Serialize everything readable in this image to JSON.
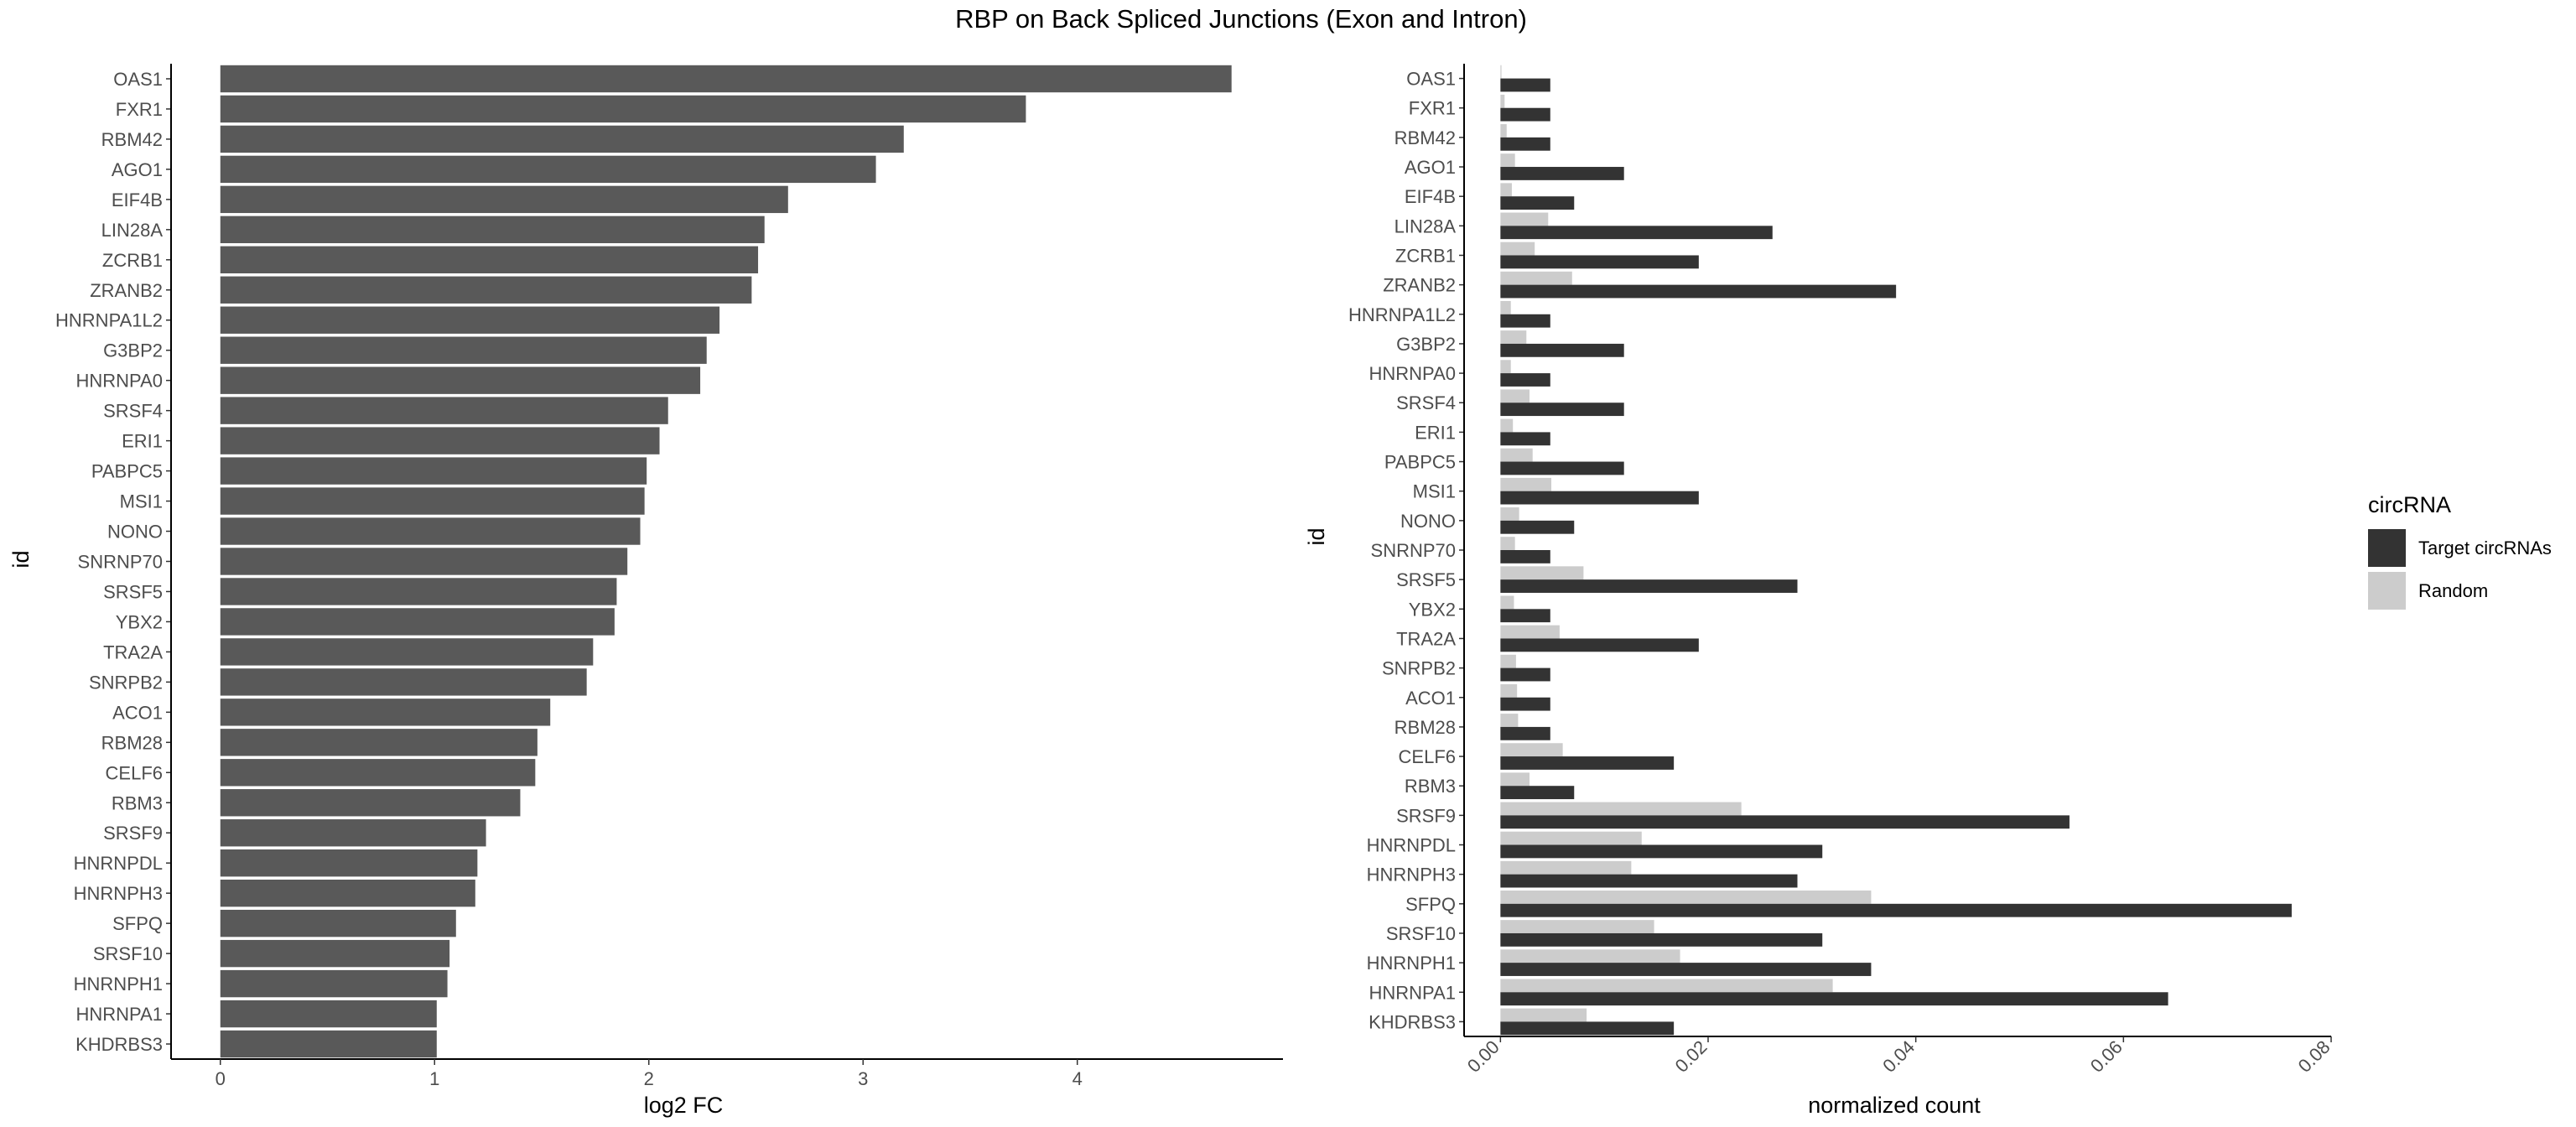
{
  "figure": {
    "title": "RBP on Back Spliced Junctions (Exon and Intron)"
  },
  "chart_data": [
    {
      "type": "bar",
      "orientation": "horizontal",
      "xlabel": "log2 FC",
      "ylabel": "id",
      "xlim": [
        -0.23,
        4.96
      ],
      "xticks": [
        0,
        1,
        2,
        3,
        4
      ],
      "grid": false,
      "bar_color": "#595959",
      "categories": [
        "OAS1",
        "FXR1",
        "RBM42",
        "AGO1",
        "EIF4B",
        "LIN28A",
        "ZCRB1",
        "ZRANB2",
        "HNRNPA1L2",
        "G3BP2",
        "HNRNPA0",
        "SRSF4",
        "ERI1",
        "PABPC5",
        "MSI1",
        "NONO",
        "SNRNP70",
        "SRSF5",
        "YBX2",
        "TRA2A",
        "SNRPB2",
        "ACO1",
        "RBM28",
        "CELF6",
        "RBM3",
        "SRSF9",
        "HNRNPDL",
        "HNRNPH3",
        "SFPQ",
        "SRSF10",
        "HNRNPH1",
        "HNRNPA1",
        "KHDRBS3"
      ],
      "values": [
        4.72,
        3.76,
        3.19,
        3.06,
        2.65,
        2.54,
        2.51,
        2.48,
        2.33,
        2.27,
        2.24,
        2.09,
        2.05,
        1.99,
        1.98,
        1.96,
        1.9,
        1.85,
        1.84,
        1.74,
        1.71,
        1.54,
        1.48,
        1.47,
        1.4,
        1.24,
        1.2,
        1.19,
        1.1,
        1.07,
        1.06,
        1.01,
        1.01
      ]
    },
    {
      "type": "bar",
      "orientation": "horizontal",
      "grouped": true,
      "xlabel": "normalized count",
      "ylabel": "id",
      "xlim": [
        -0.0035,
        0.08
      ],
      "xticks": [
        0.0,
        0.02,
        0.04,
        0.06,
        0.08
      ],
      "xtick_labels": [
        "0.00",
        "0.02",
        "0.04",
        "0.06",
        "0.08"
      ],
      "grid": false,
      "legend": {
        "title": "circRNA",
        "placement": "right"
      },
      "categories": [
        "OAS1",
        "FXR1",
        "RBM42",
        "AGO1",
        "EIF4B",
        "LIN28A",
        "ZCRB1",
        "ZRANB2",
        "HNRNPA1L2",
        "G3BP2",
        "HNRNPA0",
        "SRSF4",
        "ERI1",
        "PABPC5",
        "MSI1",
        "NONO",
        "SNRNP70",
        "SRSF5",
        "YBX2",
        "TRA2A",
        "SNRPB2",
        "ACO1",
        "RBM28",
        "CELF6",
        "RBM3",
        "SRSF9",
        "HNRNPDL",
        "HNRNPH3",
        "SFPQ",
        "SRSF10",
        "HNRNPH1",
        "HNRNPA1",
        "KHDRBS3"
      ],
      "series": [
        {
          "name": "Target circRNAs",
          "color": "#333333",
          "values": [
            0.0048,
            0.0048,
            0.0048,
            0.0119,
            0.0071,
            0.0262,
            0.0191,
            0.0381,
            0.0048,
            0.0119,
            0.0048,
            0.0119,
            0.0048,
            0.0119,
            0.0191,
            0.0071,
            0.0048,
            0.0286,
            0.0048,
            0.0191,
            0.0048,
            0.0048,
            0.0048,
            0.0167,
            0.0071,
            0.0548,
            0.031,
            0.0286,
            0.0762,
            0.031,
            0.0357,
            0.0643,
            0.0167
          ]
        },
        {
          "name": "Random",
          "color": "#cccccc",
          "values": [
            0.0001,
            0.0004,
            0.0006,
            0.0014,
            0.0011,
            0.0046,
            0.0033,
            0.0069,
            0.001,
            0.0025,
            0.001,
            0.0028,
            0.0012,
            0.0031,
            0.0049,
            0.0018,
            0.0014,
            0.008,
            0.0013,
            0.0057,
            0.0015,
            0.0016,
            0.0017,
            0.006,
            0.0028,
            0.0232,
            0.0136,
            0.0126,
            0.0357,
            0.0148,
            0.0173,
            0.032,
            0.0083
          ]
        }
      ]
    }
  ]
}
